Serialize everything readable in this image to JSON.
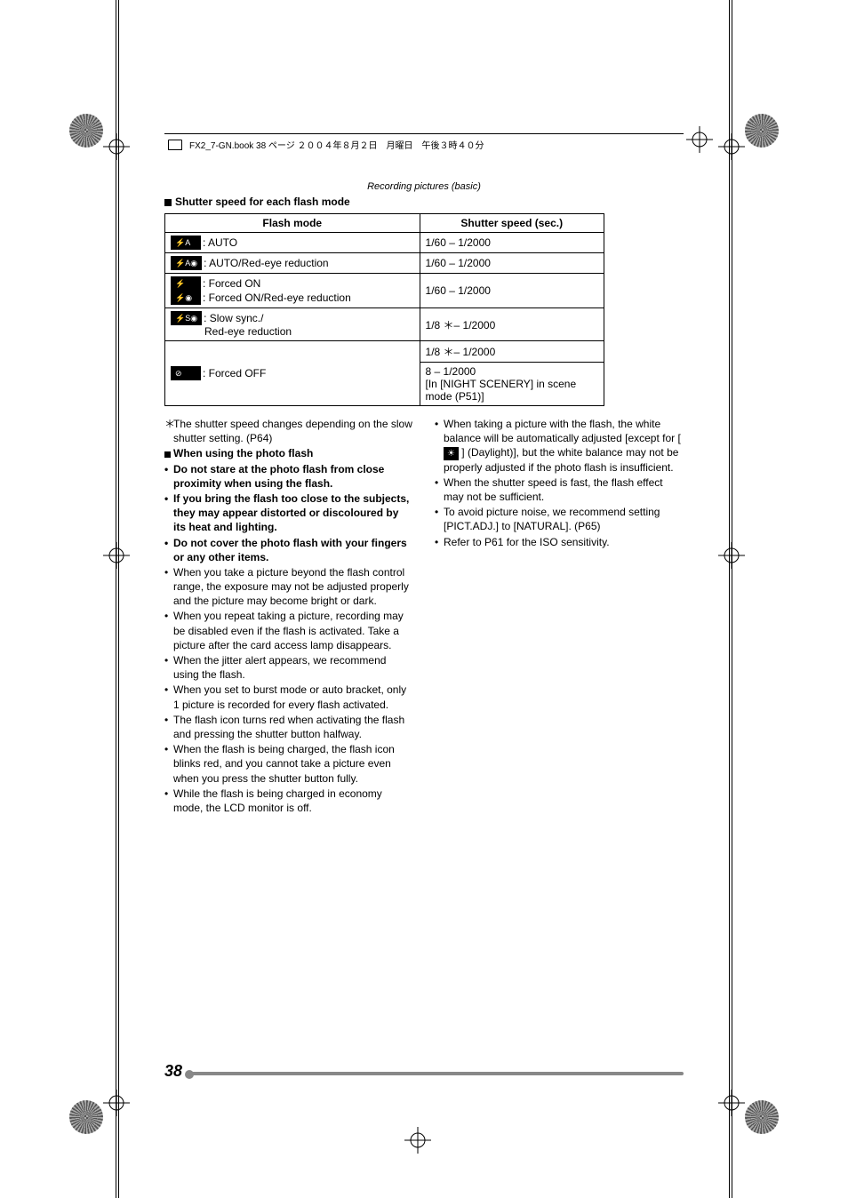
{
  "header": {
    "filename": "FX2_7-GN.book  38 ページ  ２００４年８月２日　月曜日　午後３時４０分"
  },
  "running_head": "Recording pictures (basic)",
  "section_title": "Shutter speed for each flash mode",
  "table": {
    "headers": [
      "Flash mode",
      "Shutter speed (sec.)"
    ],
    "rows": [
      {
        "icon": "⚡A",
        "label": ":  AUTO",
        "speed": "1/60 – 1/2000"
      },
      {
        "icon": "⚡A◉",
        "label": ":  AUTO/Red-eye reduction",
        "speed": "1/60 – 1/2000"
      },
      {
        "icon": "⚡",
        "icon2": "⚡◉",
        "label": ":  Forced ON",
        "label2": ":  Forced ON/Red-eye reduction",
        "speed": "1/60 – 1/2000"
      },
      {
        "icon": "⚡S◉",
        "label": ":  Slow sync./",
        "label2": "    Red-eye reduction",
        "speed": "1/8 ＊– 1/2000"
      },
      {
        "icon": "⊘",
        "label": ":  Forced OFF",
        "speed1": "1/8 ＊– 1/2000",
        "speed2": "8 – 1/2000",
        "speed3": "[In [NIGHT SCENERY] in scene mode (P51)]"
      }
    ]
  },
  "left_column": {
    "star_note": "The shutter speed changes depending on the slow shutter setting. (P64)",
    "subheading": "When using the photo flash",
    "bold_items": [
      "Do not stare at the photo flash from close proximity when using the flash.",
      "If you bring the flash too close to the subjects, they may appear distorted or discoloured by its heat and lighting.",
      "Do not cover the photo flash with your fingers or any other items."
    ],
    "items": [
      "When you take a picture beyond the flash control range, the exposure may not be adjusted properly and the picture may become bright or dark.",
      "When you repeat taking a picture, recording may be disabled even if the flash is activated. Take a picture after the card access lamp disappears.",
      "When the jitter alert appears, we recommend using the flash.",
      "When you set to burst mode or auto bracket, only 1 picture is recorded for every flash activated.",
      "The flash icon turns red when activating the flash and pressing the shutter button halfway.",
      "When the flash is being charged, the flash icon blinks red, and you cannot take a picture even when you press the shutter button fully.",
      "While the flash is being charged in economy mode, the LCD monitor is off."
    ]
  },
  "right_column": {
    "items": [
      {
        "pre": "When taking a picture with the flash, the white balance will be automatically adjusted [except for [ ",
        "icon": "☀",
        "post": " ] (Daylight)], but the white balance may not be properly adjusted if the photo flash is insufficient."
      },
      {
        "text": "When the shutter speed is fast, the flash effect may not be sufficient."
      },
      {
        "text": "To avoid picture noise, we recommend setting [PICT.ADJ.] to [NATURAL]. (P65)"
      },
      {
        "text": "Refer to P61 for the ISO sensitivity."
      }
    ]
  },
  "page_number": "38"
}
